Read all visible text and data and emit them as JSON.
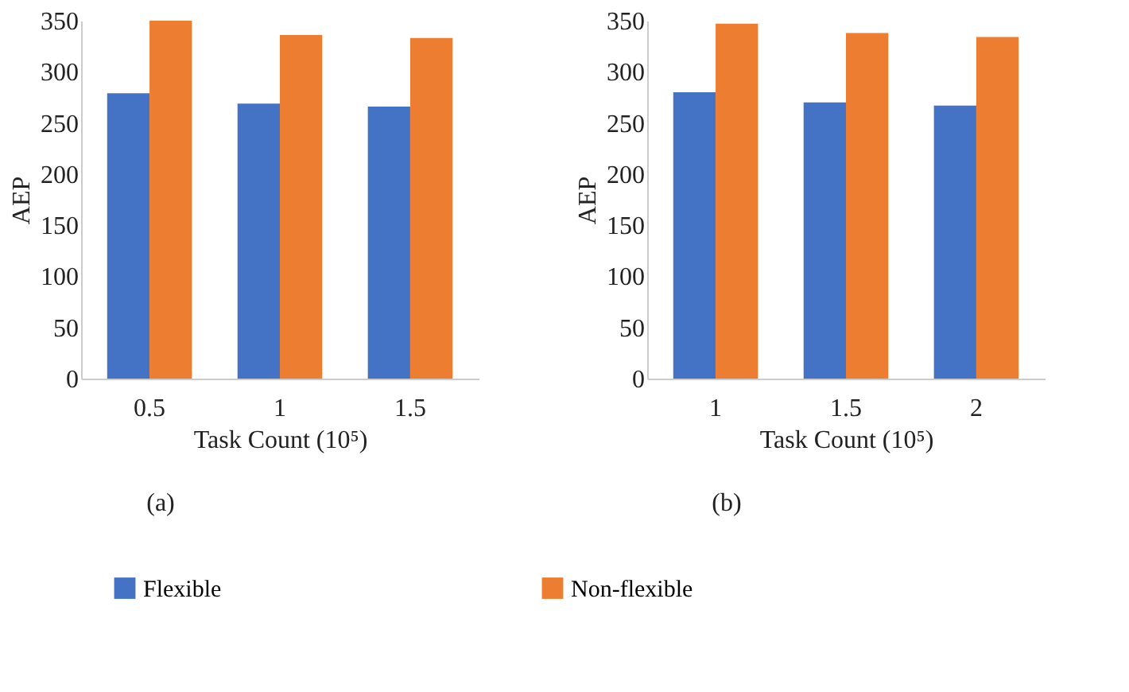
{
  "chart_data": [
    {
      "type": "bar",
      "categories": [
        "0.5",
        "1",
        "1.5"
      ],
      "xlabel": "Task Count (10⁵)",
      "ylabel": "AEP",
      "ylim": [
        0,
        350
      ],
      "yticks": [
        0,
        50,
        100,
        150,
        200,
        250,
        300,
        350
      ],
      "grid": false,
      "legend": "bottom",
      "annotations": [
        "(a)"
      ],
      "series": [
        {
          "name": "Flexible",
          "color": "#4472c4",
          "values": [
            279,
            269,
            266
          ]
        },
        {
          "name": "Non-flexible",
          "color": "#ed7d31",
          "values": [
            350,
            336,
            333
          ]
        }
      ]
    },
    {
      "type": "bar",
      "categories": [
        "1",
        "1.5",
        "2"
      ],
      "xlabel": "Task Count (10⁵)",
      "ylabel": "AEP",
      "ylim": [
        0,
        350
      ],
      "yticks": [
        0,
        50,
        100,
        150,
        200,
        250,
        300,
        350
      ],
      "grid": false,
      "legend": "bottom",
      "annotations": [
        "(b)"
      ],
      "series": [
        {
          "name": "Flexible",
          "color": "#4472c4",
          "values": [
            280,
            270,
            267
          ]
        },
        {
          "name": "Non-flexible",
          "color": "#ed7d31",
          "values": [
            347,
            338,
            334
          ]
        }
      ]
    }
  ]
}
